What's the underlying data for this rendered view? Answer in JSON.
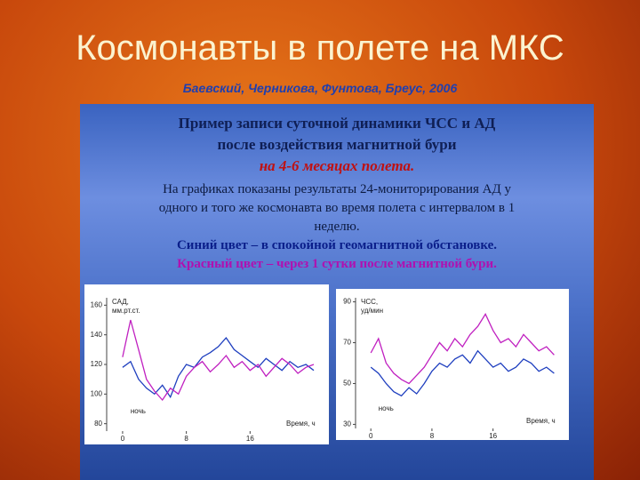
{
  "header": {
    "title": "Космонавты в полете на МКС",
    "subtitle": "Баевский, Черникова, Фунтова, Бреус, 2006"
  },
  "panel": {
    "lines": [
      "Пример записи суточной динамики ЧСС и АД",
      "после воздействия магнитной бури",
      "на 4-6 месяцах полета.",
      "На графиках показаны результаты 24-мониторирования АД у",
      "одного и того же космонавта во время полета с интервалом в 1",
      "неделю.",
      "Синий цвет – в спокойной геомагнитной обстановке.",
      "Красный цвет – через 1 сутки после магнитной бури."
    ]
  },
  "chart_data": [
    {
      "type": "line",
      "y_label": [
        "САД,",
        "мм.рт.ст."
      ],
      "x_label": "Время, ч",
      "annotation": "ночь",
      "x": [
        0,
        1,
        2,
        3,
        4,
        5,
        6,
        7,
        8,
        9,
        10,
        11,
        12,
        13,
        14,
        15,
        16,
        17,
        18,
        19,
        20,
        21,
        22,
        23,
        24
      ],
      "xlim": [
        -2,
        25
      ],
      "xticks": [
        0,
        8,
        16
      ],
      "ylim": [
        75,
        165
      ],
      "yticks": [
        80,
        100,
        120,
        140,
        160
      ],
      "series": [
        {
          "color": "#1f3fbf",
          "values": [
            118,
            122,
            110,
            104,
            100,
            106,
            98,
            112,
            120,
            118,
            125,
            128,
            132,
            138,
            130,
            126,
            122,
            118,
            124,
            120,
            116,
            122,
            118,
            120,
            116
          ]
        },
        {
          "color": "#c020c0",
          "values": [
            125,
            150,
            130,
            110,
            102,
            96,
            104,
            100,
            112,
            118,
            122,
            115,
            120,
            126,
            118,
            122,
            116,
            120,
            112,
            118,
            124,
            120,
            114,
            118,
            120
          ]
        }
      ]
    },
    {
      "type": "line",
      "y_label": [
        "ЧСС,",
        "уд/мин"
      ],
      "x_label": "Время, ч",
      "annotation": "ночь",
      "x": [
        0,
        1,
        2,
        3,
        4,
        5,
        6,
        7,
        8,
        9,
        10,
        11,
        12,
        13,
        14,
        15,
        16,
        17,
        18,
        19,
        20,
        21,
        22,
        23,
        24
      ],
      "xlim": [
        -2,
        25
      ],
      "xticks": [
        0,
        8,
        16
      ],
      "ylim": [
        28,
        92
      ],
      "yticks": [
        30,
        50,
        70,
        90
      ],
      "series": [
        {
          "color": "#1f3fbf",
          "values": [
            58,
            55,
            50,
            46,
            44,
            48,
            45,
            50,
            56,
            60,
            58,
            62,
            64,
            60,
            66,
            62,
            58,
            60,
            56,
            58,
            62,
            60,
            56,
            58,
            55
          ]
        },
        {
          "color": "#c020c0",
          "values": [
            65,
            72,
            60,
            55,
            52,
            50,
            54,
            58,
            64,
            70,
            66,
            72,
            68,
            74,
            78,
            84,
            76,
            70,
            72,
            68,
            74,
            70,
            66,
            68,
            64
          ]
        }
      ]
    }
  ]
}
